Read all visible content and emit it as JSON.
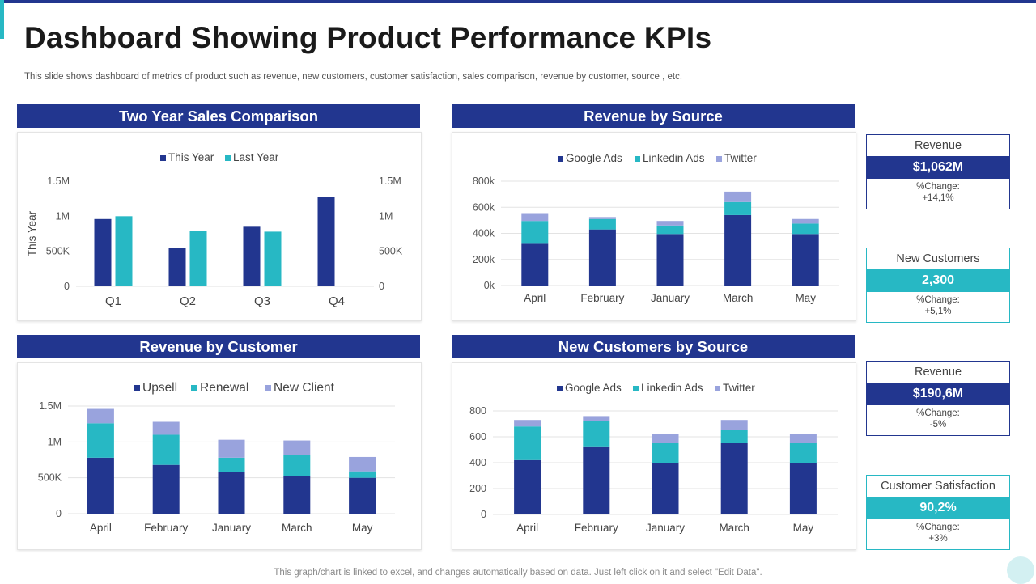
{
  "slide": {
    "title": "Dashboard Showing Product Performance KPIs",
    "subtitle": "This slide shows dashboard of metrics of product such as revenue, new customers, customer satisfaction, sales comparison, revenue by customer, source , etc.",
    "footer": "This graph/chart is linked to excel, and changes automatically based on data. Just left click on it and select \"Edit Data\"."
  },
  "colors": {
    "navy": "#22368f",
    "teal": "#27b8c4",
    "lavender": "#99a3dd"
  },
  "chart_data": [
    {
      "id": "sales",
      "type": "bar",
      "title": "Two Year Sales Comparison",
      "categories": [
        "Q1",
        "Q2",
        "Q3",
        "Q4"
      ],
      "series": [
        {
          "name": "This Year",
          "color": "#22368f",
          "values": [
            960000,
            550000,
            850000,
            1280000
          ]
        },
        {
          "name": "Last Year",
          "color": "#27b8c4",
          "values": [
            1000000,
            790000,
            780000,
            null
          ]
        }
      ],
      "ylabel": "This Year",
      "ylim": [
        0,
        1500000
      ],
      "yticks": [
        "0",
        "500K",
        "1M",
        "1.5M"
      ],
      "y2ticks": [
        "0",
        "500K",
        "1M",
        "1.5M"
      ],
      "legend": "top",
      "grid": false
    },
    {
      "id": "revsource",
      "type": "bar",
      "stacked": true,
      "title": "Revenue by Source",
      "categories": [
        "April",
        "February",
        "January",
        "March",
        "May"
      ],
      "series": [
        {
          "name": "Google Ads",
          "color": "#22368f",
          "values": [
            320000,
            430000,
            395000,
            540000,
            395000
          ]
        },
        {
          "name": "Linkedin Ads",
          "color": "#27b8c4",
          "values": [
            175000,
            80000,
            65000,
            100000,
            80000
          ]
        },
        {
          "name": "Twitter",
          "color": "#99a3dd",
          "values": [
            60000,
            15000,
            35000,
            80000,
            35000
          ]
        }
      ],
      "ylim": [
        0,
        800000
      ],
      "yticks": [
        "0k",
        "200k",
        "400k",
        "600k",
        "800k"
      ],
      "legend": "top",
      "grid": true
    },
    {
      "id": "revcustomer",
      "type": "bar",
      "stacked": true,
      "title": "Revenue by Customer",
      "categories": [
        "April",
        "February",
        "January",
        "March",
        "May"
      ],
      "series": [
        {
          "name": "Upsell",
          "color": "#22368f",
          "values": [
            780000,
            680000,
            580000,
            530000,
            500000
          ]
        },
        {
          "name": "Renewal",
          "color": "#27b8c4",
          "values": [
            480000,
            420000,
            200000,
            290000,
            90000
          ]
        },
        {
          "name": "New Client",
          "color": "#99a3dd",
          "values": [
            200000,
            180000,
            250000,
            200000,
            200000
          ]
        }
      ],
      "ylim": [
        0,
        1500000
      ],
      "yticks": [
        "0",
        "500K",
        "1M",
        "1.5M"
      ],
      "legend": "top",
      "grid": true
    },
    {
      "id": "newcust",
      "type": "bar",
      "stacked": true,
      "title": "New Customers by Source",
      "categories": [
        "April",
        "February",
        "January",
        "March",
        "May"
      ],
      "series": [
        {
          "name": "Google Ads",
          "color": "#22368f",
          "values": [
            420,
            520,
            395,
            550,
            395
          ]
        },
        {
          "name": "Linkedin Ads",
          "color": "#27b8c4",
          "values": [
            260,
            200,
            155,
            100,
            155
          ]
        },
        {
          "name": "Twitter",
          "color": "#99a3dd",
          "values": [
            50,
            40,
            75,
            80,
            70
          ]
        }
      ],
      "ylim": [
        0,
        800
      ],
      "yticks": [
        "0",
        "200",
        "400",
        "600",
        "800"
      ],
      "legend": "top",
      "grid": true
    }
  ],
  "kpis": [
    {
      "label": "Revenue",
      "value": "$1,062M",
      "change_label": "%Change:",
      "change": "+14,1%",
      "style": "navy"
    },
    {
      "label": "New Customers",
      "value": "2,300",
      "change_label": "%Change:",
      "change": "+5,1%",
      "style": "teal"
    },
    {
      "label": "Revenue",
      "value": "$190,6M",
      "change_label": "%Change:",
      "change": "-5%",
      "style": "navy"
    },
    {
      "label": "Customer Satisfaction",
      "value": "90,2%",
      "change_label": "%Change:",
      "change": "+3%",
      "style": "teal"
    }
  ]
}
